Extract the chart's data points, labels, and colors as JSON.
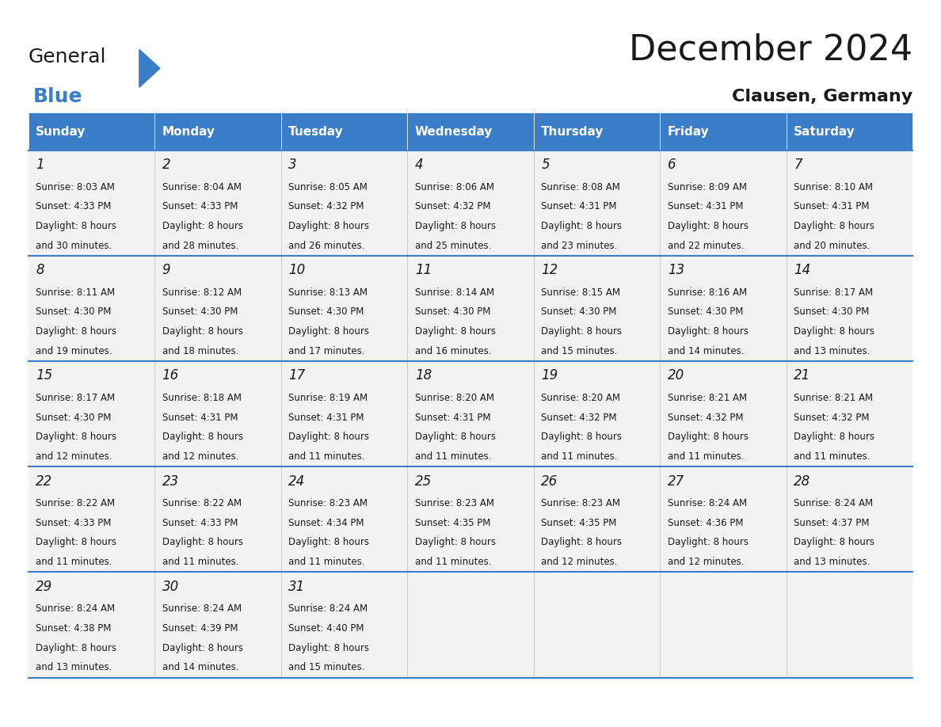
{
  "title": "December 2024",
  "subtitle": "Clausen, Germany",
  "header_color": "#3A7DC9",
  "header_text_color": "#FFFFFF",
  "border_color": "#3A7DC9",
  "cell_bg_color": "#F2F2F2",
  "day_headers": [
    "Sunday",
    "Monday",
    "Tuesday",
    "Wednesday",
    "Thursday",
    "Friday",
    "Saturday"
  ],
  "weeks": [
    [
      {
        "day": 1,
        "sunrise": "8:03 AM",
        "sunset": "4:33 PM",
        "daylight": "8 hours and 30 minutes."
      },
      {
        "day": 2,
        "sunrise": "8:04 AM",
        "sunset": "4:33 PM",
        "daylight": "8 hours and 28 minutes."
      },
      {
        "day": 3,
        "sunrise": "8:05 AM",
        "sunset": "4:32 PM",
        "daylight": "8 hours and 26 minutes."
      },
      {
        "day": 4,
        "sunrise": "8:06 AM",
        "sunset": "4:32 PM",
        "daylight": "8 hours and 25 minutes."
      },
      {
        "day": 5,
        "sunrise": "8:08 AM",
        "sunset": "4:31 PM",
        "daylight": "8 hours and 23 minutes."
      },
      {
        "day": 6,
        "sunrise": "8:09 AM",
        "sunset": "4:31 PM",
        "daylight": "8 hours and 22 minutes."
      },
      {
        "day": 7,
        "sunrise": "8:10 AM",
        "sunset": "4:31 PM",
        "daylight": "8 hours and 20 minutes."
      }
    ],
    [
      {
        "day": 8,
        "sunrise": "8:11 AM",
        "sunset": "4:30 PM",
        "daylight": "8 hours and 19 minutes."
      },
      {
        "day": 9,
        "sunrise": "8:12 AM",
        "sunset": "4:30 PM",
        "daylight": "8 hours and 18 minutes."
      },
      {
        "day": 10,
        "sunrise": "8:13 AM",
        "sunset": "4:30 PM",
        "daylight": "8 hours and 17 minutes."
      },
      {
        "day": 11,
        "sunrise": "8:14 AM",
        "sunset": "4:30 PM",
        "daylight": "8 hours and 16 minutes."
      },
      {
        "day": 12,
        "sunrise": "8:15 AM",
        "sunset": "4:30 PM",
        "daylight": "8 hours and 15 minutes."
      },
      {
        "day": 13,
        "sunrise": "8:16 AM",
        "sunset": "4:30 PM",
        "daylight": "8 hours and 14 minutes."
      },
      {
        "day": 14,
        "sunrise": "8:17 AM",
        "sunset": "4:30 PM",
        "daylight": "8 hours and 13 minutes."
      }
    ],
    [
      {
        "day": 15,
        "sunrise": "8:17 AM",
        "sunset": "4:30 PM",
        "daylight": "8 hours and 12 minutes."
      },
      {
        "day": 16,
        "sunrise": "8:18 AM",
        "sunset": "4:31 PM",
        "daylight": "8 hours and 12 minutes."
      },
      {
        "day": 17,
        "sunrise": "8:19 AM",
        "sunset": "4:31 PM",
        "daylight": "8 hours and 11 minutes."
      },
      {
        "day": 18,
        "sunrise": "8:20 AM",
        "sunset": "4:31 PM",
        "daylight": "8 hours and 11 minutes."
      },
      {
        "day": 19,
        "sunrise": "8:20 AM",
        "sunset": "4:32 PM",
        "daylight": "8 hours and 11 minutes."
      },
      {
        "day": 20,
        "sunrise": "8:21 AM",
        "sunset": "4:32 PM",
        "daylight": "8 hours and 11 minutes."
      },
      {
        "day": 21,
        "sunrise": "8:21 AM",
        "sunset": "4:32 PM",
        "daylight": "8 hours and 11 minutes."
      }
    ],
    [
      {
        "day": 22,
        "sunrise": "8:22 AM",
        "sunset": "4:33 PM",
        "daylight": "8 hours and 11 minutes."
      },
      {
        "day": 23,
        "sunrise": "8:22 AM",
        "sunset": "4:33 PM",
        "daylight": "8 hours and 11 minutes."
      },
      {
        "day": 24,
        "sunrise": "8:23 AM",
        "sunset": "4:34 PM",
        "daylight": "8 hours and 11 minutes."
      },
      {
        "day": 25,
        "sunrise": "8:23 AM",
        "sunset": "4:35 PM",
        "daylight": "8 hours and 11 minutes."
      },
      {
        "day": 26,
        "sunrise": "8:23 AM",
        "sunset": "4:35 PM",
        "daylight": "8 hours and 12 minutes."
      },
      {
        "day": 27,
        "sunrise": "8:24 AM",
        "sunset": "4:36 PM",
        "daylight": "8 hours and 12 minutes."
      },
      {
        "day": 28,
        "sunrise": "8:24 AM",
        "sunset": "4:37 PM",
        "daylight": "8 hours and 13 minutes."
      }
    ],
    [
      {
        "day": 29,
        "sunrise": "8:24 AM",
        "sunset": "4:38 PM",
        "daylight": "8 hours and 13 minutes."
      },
      {
        "day": 30,
        "sunrise": "8:24 AM",
        "sunset": "4:39 PM",
        "daylight": "8 hours and 14 minutes."
      },
      {
        "day": 31,
        "sunrise": "8:24 AM",
        "sunset": "4:40 PM",
        "daylight": "8 hours and 15 minutes."
      },
      null,
      null,
      null,
      null
    ]
  ],
  "logo_text_general": "General",
  "logo_text_blue": "Blue",
  "logo_triangle_color": "#3A7DC9",
  "title_fontsize": 32,
  "subtitle_fontsize": 16,
  "header_fontsize": 11,
  "day_num_fontsize": 12,
  "cell_text_fontsize": 8.5
}
